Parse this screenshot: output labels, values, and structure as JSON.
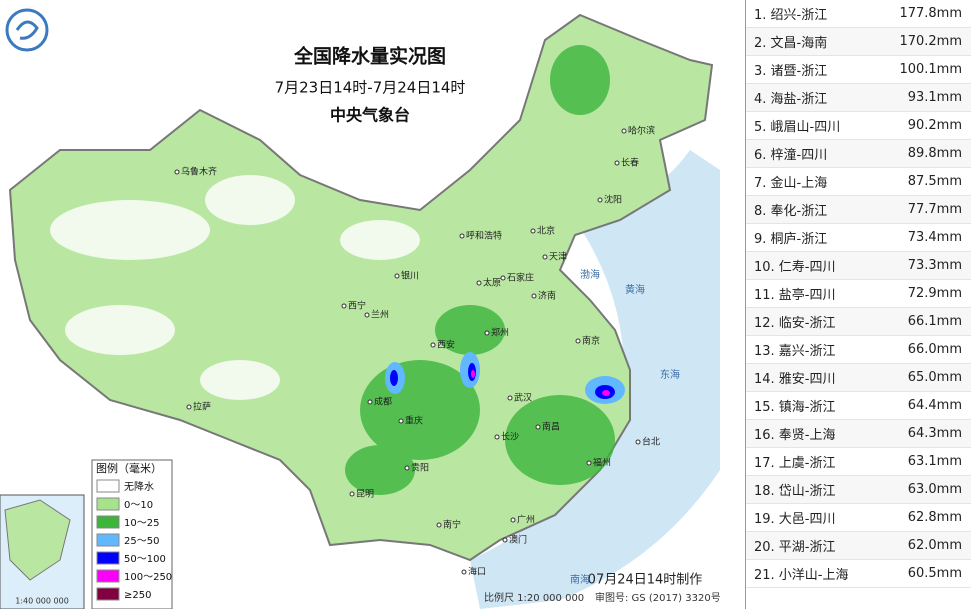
{
  "header": {
    "title": "全国降水量实况图",
    "period": "7月23日14时-7月24日14时",
    "organization": "中央气象台"
  },
  "legend": {
    "title": "图例（毫米）",
    "items": [
      {
        "label": "无降水",
        "color": "#ffffff"
      },
      {
        "label": "0～10",
        "color": "#a6e38c"
      },
      {
        "label": "10～25",
        "color": "#3db53d"
      },
      {
        "label": "25～50",
        "color": "#61b8ff"
      },
      {
        "label": "50～100",
        "color": "#0000fe"
      },
      {
        "label": "100～250",
        "color": "#fa00fa"
      },
      {
        "label": "≥250",
        "color": "#800040"
      }
    ]
  },
  "map": {
    "cities": [
      "乌鲁木齐",
      "哈尔滨",
      "长春",
      "沈阳",
      "呼和浩特",
      "北京",
      "天津",
      "石家庄",
      "太原",
      "银川",
      "济南",
      "西宁",
      "兰州",
      "郑州",
      "西安",
      "南京",
      "武汉",
      "成都",
      "重庆",
      "长沙",
      "南昌",
      "福州",
      "贵阳",
      "昆明",
      "南宁",
      "广州",
      "澳门",
      "拉萨",
      "海口",
      "台北"
    ],
    "seas": [
      "渤海",
      "黄海",
      "东海",
      "南海"
    ],
    "made": "07月24日14时制作",
    "scale": "比例尺 1:20 000 000",
    "approval": "审图号: GS (2017) 3320号",
    "inset_scale": "1:40 000 000"
  },
  "table": {
    "rows": [
      [
        "1. 绍兴-浙江",
        "177.8mm"
      ],
      [
        "2. 文昌-海南",
        "170.2mm"
      ],
      [
        "3. 诸暨-浙江",
        "100.1mm"
      ],
      [
        "4. 海盐-浙江",
        "93.1mm"
      ],
      [
        "5. 峨眉山-四川",
        "90.2mm"
      ],
      [
        "6. 梓潼-四川",
        "89.8mm"
      ],
      [
        "7. 金山-上海",
        "87.5mm"
      ],
      [
        "8. 奉化-浙江",
        "77.7mm"
      ],
      [
        "9. 桐庐-浙江",
        "73.4mm"
      ],
      [
        "10. 仁寿-四川",
        "73.3mm"
      ],
      [
        "11. 盐亭-四川",
        "72.9mm"
      ],
      [
        "12. 临安-浙江",
        "66.1mm"
      ],
      [
        "13. 嘉兴-浙江",
        "66.0mm"
      ],
      [
        "14. 雅安-四川",
        "65.0mm"
      ],
      [
        "15. 镇海-浙江",
        "64.4mm"
      ],
      [
        "16. 奉贤-上海",
        "64.3mm"
      ],
      [
        "17. 上虞-浙江",
        "63.1mm"
      ],
      [
        "18. 岱山-浙江",
        "63.0mm"
      ],
      [
        "19. 大邑-四川",
        "62.8mm"
      ],
      [
        "20. 平湖-浙江",
        "62.0mm"
      ],
      [
        "21. 小洋山-上海",
        "60.5mm"
      ]
    ]
  }
}
